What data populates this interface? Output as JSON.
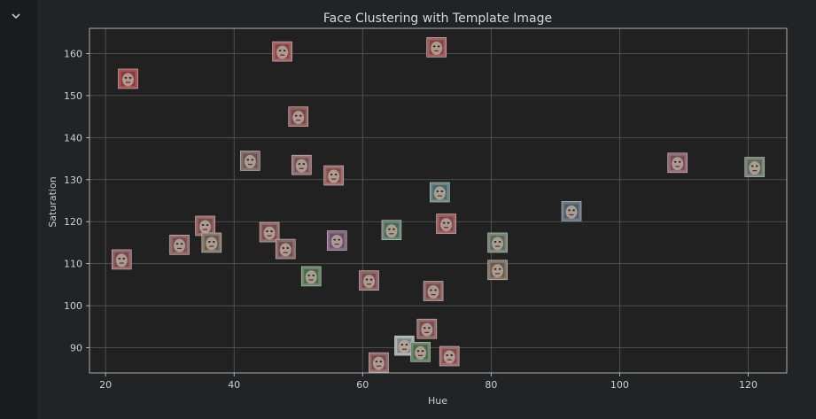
{
  "collapse_icon": "chevron-down-icon",
  "chart_data": {
    "type": "scatter",
    "title": "Face Clustering with Template Image",
    "xlabel": "Hue",
    "ylabel": "Saturation",
    "xlim": [
      17.5,
      126
    ],
    "ylim": [
      84,
      166
    ],
    "xticks": [
      20,
      40,
      60,
      80,
      100,
      120
    ],
    "yticks": [
      90,
      100,
      110,
      120,
      130,
      140,
      150,
      160
    ],
    "grid": true,
    "marker": "face-thumbnail",
    "colors": {
      "background": "#212121",
      "grid": "#5a5a5a",
      "frame": "#cfcfcf",
      "text": "#cfcfcf"
    },
    "points": [
      {
        "x": 23.5,
        "y": 154,
        "tint": "#b05050"
      },
      {
        "x": 22.5,
        "y": 111,
        "tint": "#9a6565"
      },
      {
        "x": 31.5,
        "y": 114.5,
        "tint": "#9a6a6a"
      },
      {
        "x": 35.5,
        "y": 119,
        "tint": "#9c6666"
      },
      {
        "x": 36.5,
        "y": 115,
        "tint": "#8a7a6a"
      },
      {
        "x": 42.5,
        "y": 134.5,
        "tint": "#8a6f6f"
      },
      {
        "x": 45.5,
        "y": 117.5,
        "tint": "#9a6a6a"
      },
      {
        "x": 47.5,
        "y": 160.5,
        "tint": "#a86060"
      },
      {
        "x": 48,
        "y": 113.5,
        "tint": "#8f6a6a"
      },
      {
        "x": 50,
        "y": 145,
        "tint": "#9a6262"
      },
      {
        "x": 50.5,
        "y": 133.5,
        "tint": "#9a7070"
      },
      {
        "x": 52,
        "y": 107,
        "tint": "#6a8a6a"
      },
      {
        "x": 55.5,
        "y": 131,
        "tint": "#a66a6a"
      },
      {
        "x": 56,
        "y": 115.5,
        "tint": "#8a6a8a"
      },
      {
        "x": 61,
        "y": 106,
        "tint": "#9a6a6a"
      },
      {
        "x": 62.5,
        "y": 86.5,
        "tint": "#9a6a6a"
      },
      {
        "x": 64.5,
        "y": 118,
        "tint": "#6a8a7a"
      },
      {
        "x": 66.5,
        "y": 90.5,
        "tint": "#aab4b4"
      },
      {
        "x": 69,
        "y": 89,
        "tint": "#6a8a6a"
      },
      {
        "x": 70,
        "y": 94.5,
        "tint": "#9a6a6a"
      },
      {
        "x": 71,
        "y": 103.5,
        "tint": "#9a6a6a"
      },
      {
        "x": 71.5,
        "y": 161.5,
        "tint": "#a86060"
      },
      {
        "x": 72,
        "y": 127,
        "tint": "#6a8a8a"
      },
      {
        "x": 73,
        "y": 119.5,
        "tint": "#a66060"
      },
      {
        "x": 73.5,
        "y": 88,
        "tint": "#a66a6a"
      },
      {
        "x": 81,
        "y": 115,
        "tint": "#7a8a7a"
      },
      {
        "x": 81,
        "y": 108.5,
        "tint": "#8a7a6a"
      },
      {
        "x": 92.5,
        "y": 122.5,
        "tint": "#6a7a8a"
      },
      {
        "x": 109,
        "y": 134,
        "tint": "#9a6a7a"
      },
      {
        "x": 121,
        "y": 133,
        "tint": "#7a8a7a"
      }
    ]
  }
}
